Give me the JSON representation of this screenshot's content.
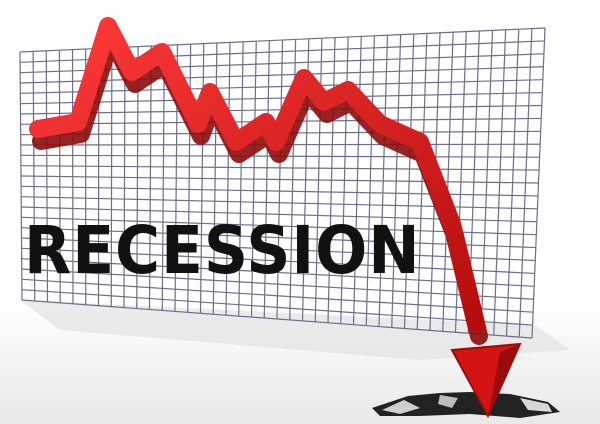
{
  "headline": "RECESSION",
  "colors": {
    "arrow": "#d41414",
    "arrow_dark": "#8e0a0a",
    "grid_line": "#6e6e8c",
    "text": "#111111",
    "floor": "#eeeeee"
  },
  "icons": {
    "arrow": "downward-trend-arrow",
    "grid": "grid-board",
    "crack": "floor-crack"
  }
}
